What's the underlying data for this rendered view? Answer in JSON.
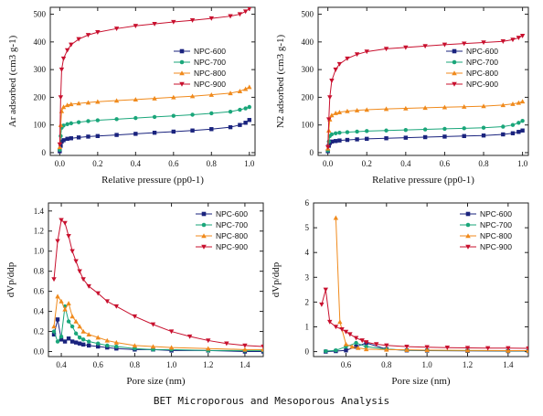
{
  "caption": "BET Microporous and Mesoporous Analysis",
  "colors": {
    "NPC-600": "#1a237e",
    "NPC-700": "#1aa67a",
    "NPC-800": "#f08a1c",
    "NPC-900": "#c8102e"
  },
  "chart_data": [
    {
      "type": "line",
      "title": "",
      "xlabel": "Relative pressure (pp0-1)",
      "ylabel": "Ar adsorbed (cm3 g-1)",
      "xlim": [
        -0.05,
        1.03
      ],
      "ylim": [
        -10,
        525
      ],
      "xticks": [
        "0.0",
        "0.2",
        "0.4",
        "0.6",
        "0.8",
        "1.0"
      ],
      "yticks": [
        "0",
        "100",
        "200",
        "300",
        "400",
        "500"
      ],
      "legend_position": "center-right",
      "x": [
        0.0,
        0.005,
        0.01,
        0.02,
        0.04,
        0.06,
        0.1,
        0.15,
        0.2,
        0.3,
        0.4,
        0.5,
        0.6,
        0.7,
        0.8,
        0.9,
        0.95,
        0.98,
        1.0
      ],
      "series": [
        {
          "name": "NPC-600",
          "values": [
            5,
            25,
            40,
            45,
            50,
            52,
            55,
            58,
            60,
            64,
            68,
            72,
            76,
            80,
            85,
            92,
            100,
            108,
            118
          ]
        },
        {
          "name": "NPC-700",
          "values": [
            10,
            60,
            90,
            98,
            103,
            106,
            110,
            114,
            117,
            121,
            125,
            129,
            133,
            137,
            142,
            148,
            155,
            160,
            165
          ]
        },
        {
          "name": "NPC-800",
          "values": [
            20,
            100,
            150,
            165,
            172,
            175,
            178,
            181,
            184,
            188,
            192,
            196,
            200,
            204,
            209,
            215,
            222,
            230,
            237
          ]
        },
        {
          "name": "NPC-900",
          "values": [
            30,
            200,
            300,
            340,
            370,
            390,
            410,
            425,
            435,
            448,
            458,
            465,
            472,
            478,
            485,
            493,
            500,
            510,
            520
          ]
        }
      ]
    },
    {
      "type": "line",
      "title": "",
      "xlabel": "Relative pressure (pp0-1)",
      "ylabel": "N2 adsorbed (cm3 g-1)",
      "xlim": [
        -0.05,
        1.03
      ],
      "ylim": [
        -10,
        525
      ],
      "xticks": [
        "0.0",
        "0.2",
        "0.4",
        "0.6",
        "0.8",
        "1.0"
      ],
      "yticks": [
        "0",
        "100",
        "200",
        "300",
        "400",
        "500"
      ],
      "legend_position": "center-right",
      "x": [
        0.0,
        0.005,
        0.01,
        0.02,
        0.04,
        0.06,
        0.1,
        0.15,
        0.2,
        0.3,
        0.4,
        0.5,
        0.6,
        0.7,
        0.8,
        0.9,
        0.95,
        0.98,
        1.0
      ],
      "series": [
        {
          "name": "NPC-600",
          "values": [
            5,
            25,
            35,
            40,
            42,
            44,
            46,
            48,
            50,
            52,
            54,
            56,
            58,
            60,
            62,
            66,
            70,
            75,
            80
          ]
        },
        {
          "name": "NPC-700",
          "values": [
            8,
            40,
            60,
            66,
            70,
            72,
            74,
            76,
            78,
            80,
            82,
            84,
            86,
            88,
            90,
            94,
            100,
            108,
            115
          ]
        },
        {
          "name": "NPC-800",
          "values": [
            15,
            80,
            120,
            135,
            143,
            146,
            150,
            153,
            155,
            158,
            160,
            162,
            164,
            166,
            168,
            172,
            176,
            180,
            185
          ]
        },
        {
          "name": "NPC-900",
          "values": [
            20,
            120,
            200,
            260,
            300,
            320,
            340,
            355,
            365,
            375,
            380,
            385,
            390,
            394,
            398,
            402,
            408,
            415,
            422
          ]
        }
      ]
    },
    {
      "type": "line",
      "title": "",
      "xlabel": "Pore size (nm)",
      "ylabel": "dVp/ddp",
      "xlim": [
        0.33,
        1.5
      ],
      "ylim": [
        -0.05,
        1.48
      ],
      "xticks": [
        "0.4",
        "0.6",
        "0.8",
        "1.0",
        "1.2",
        "1.4"
      ],
      "yticks": [
        "0.0",
        "0.2",
        "0.4",
        "0.6",
        "0.8",
        "1.0",
        "1.2",
        "1.4"
      ],
      "legend_position": "top-right",
      "series": [
        {
          "name": "NPC-600",
          "x": [
            0.36,
            0.38,
            0.4,
            0.42,
            0.44,
            0.46,
            0.48,
            0.5,
            0.52,
            0.55,
            0.6,
            0.65,
            0.7,
            0.8,
            0.9,
            1.0,
            1.2,
            1.4,
            1.5
          ],
          "values": [
            0.17,
            0.32,
            0.12,
            0.1,
            0.13,
            0.1,
            0.09,
            0.08,
            0.07,
            0.06,
            0.05,
            0.04,
            0.03,
            0.02,
            0.02,
            0.01,
            0.01,
            0.0,
            0.0
          ]
        },
        {
          "name": "NPC-700",
          "x": [
            0.36,
            0.38,
            0.4,
            0.42,
            0.44,
            0.46,
            0.48,
            0.5,
            0.52,
            0.55,
            0.6,
            0.65,
            0.7,
            0.8,
            0.9,
            1.0,
            1.2,
            1.4,
            1.5
          ],
          "values": [
            0.2,
            0.1,
            0.15,
            0.45,
            0.3,
            0.25,
            0.18,
            0.14,
            0.12,
            0.1,
            0.08,
            0.06,
            0.05,
            0.03,
            0.02,
            0.02,
            0.01,
            0.01,
            0.01
          ]
        },
        {
          "name": "NPC-800",
          "x": [
            0.36,
            0.38,
            0.4,
            0.42,
            0.44,
            0.46,
            0.48,
            0.5,
            0.52,
            0.55,
            0.6,
            0.65,
            0.7,
            0.8,
            0.9,
            1.0,
            1.2,
            1.4,
            1.5
          ],
          "values": [
            0.25,
            0.55,
            0.5,
            0.42,
            0.48,
            0.35,
            0.3,
            0.25,
            0.2,
            0.17,
            0.14,
            0.11,
            0.09,
            0.06,
            0.05,
            0.04,
            0.03,
            0.02,
            0.02
          ]
        },
        {
          "name": "NPC-900",
          "x": [
            0.36,
            0.38,
            0.4,
            0.42,
            0.44,
            0.46,
            0.48,
            0.5,
            0.52,
            0.55,
            0.6,
            0.65,
            0.7,
            0.8,
            0.9,
            1.0,
            1.1,
            1.2,
            1.3,
            1.4,
            1.5
          ],
          "values": [
            0.72,
            1.1,
            1.31,
            1.28,
            1.15,
            1.0,
            0.9,
            0.8,
            0.72,
            0.65,
            0.58,
            0.5,
            0.45,
            0.35,
            0.27,
            0.2,
            0.15,
            0.11,
            0.08,
            0.06,
            0.05
          ]
        }
      ]
    },
    {
      "type": "line",
      "title": "",
      "xlabel": "Pore size (nm)",
      "ylabel": "dVp/ddp",
      "xlim": [
        0.44,
        1.5
      ],
      "ylim": [
        -0.2,
        6
      ],
      "xticks": [
        "0.6",
        "0.8",
        "1.0",
        "1.2",
        "1.4"
      ],
      "yticks": [
        "0",
        "1",
        "2",
        "3",
        "4",
        "5",
        "6"
      ],
      "legend_position": "top-right",
      "series": [
        {
          "name": "NPC-600",
          "x": [
            0.5,
            0.55,
            0.6,
            0.65,
            0.7,
            0.8,
            0.9,
            1.0,
            1.2,
            1.4,
            1.5
          ],
          "values": [
            0.0,
            0.02,
            0.05,
            0.2,
            0.35,
            0.1,
            0.05,
            0.04,
            0.03,
            0.02,
            0.02
          ]
        },
        {
          "name": "NPC-700",
          "x": [
            0.5,
            0.55,
            0.6,
            0.65,
            0.7,
            0.8,
            0.9,
            1.0,
            1.2,
            1.4,
            1.5
          ],
          "values": [
            0.02,
            0.05,
            0.2,
            0.35,
            0.2,
            0.1,
            0.06,
            0.05,
            0.04,
            0.03,
            0.03
          ]
        },
        {
          "name": "NPC-800",
          "x": [
            0.55,
            0.57,
            0.6,
            0.63,
            0.66,
            0.7,
            0.8,
            0.9,
            1.0,
            1.2,
            1.4,
            1.5
          ],
          "values": [
            5.4,
            1.2,
            0.3,
            0.2,
            0.15,
            0.1,
            0.08,
            0.07,
            0.06,
            0.05,
            0.04,
            0.04
          ]
        },
        {
          "name": "NPC-900",
          "x": [
            0.48,
            0.5,
            0.52,
            0.55,
            0.58,
            0.6,
            0.62,
            0.65,
            0.68,
            0.7,
            0.75,
            0.8,
            0.9,
            1.0,
            1.1,
            1.2,
            1.3,
            1.4,
            1.5
          ],
          "values": [
            1.9,
            2.5,
            1.2,
            1.0,
            0.9,
            0.8,
            0.7,
            0.55,
            0.45,
            0.38,
            0.3,
            0.25,
            0.2,
            0.18,
            0.16,
            0.15,
            0.14,
            0.14,
            0.13
          ]
        }
      ]
    }
  ]
}
